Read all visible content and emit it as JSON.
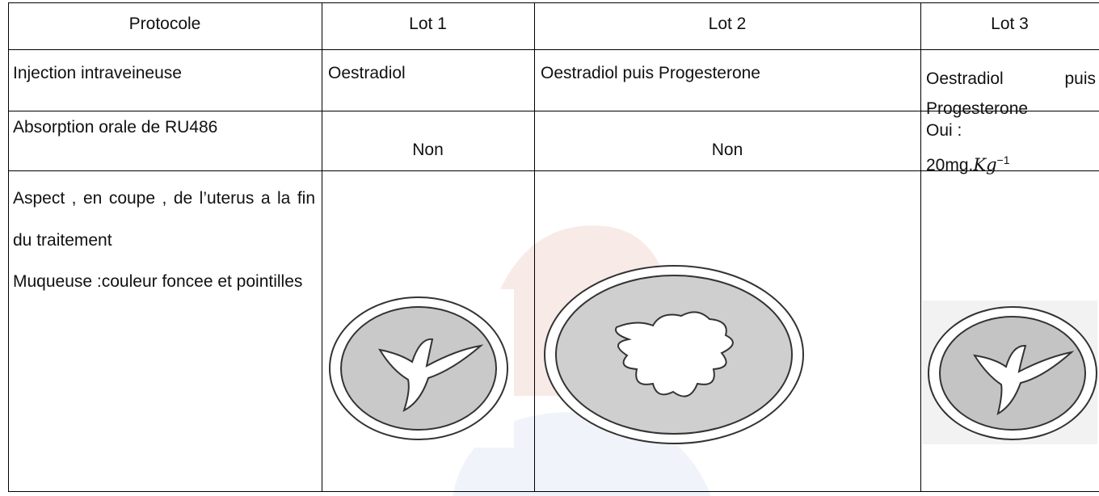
{
  "table": {
    "header": [
      "Protocole",
      "Lot 1",
      "Lot 2",
      "Lot 3"
    ],
    "rows": [
      [
        "Injection intraveineuse",
        "Oestradiol",
        "Oestradiol puis Progesterone",
        "Oestradiol puis Progesterone"
      ],
      [
        "Absorption orale de RU486",
        "Non",
        "Non",
        {
          "line1": "Oui :",
          "line2": "20mg.",
          "unit": "Kg",
          "exponent": "−1"
        }
      ],
      [
        [
          "Aspect , en coupe , de l’uterus a la fin du traitement",
          "Muqueuse :couleur foncee et pointilles"
        ]
      ]
    ]
  }
}
